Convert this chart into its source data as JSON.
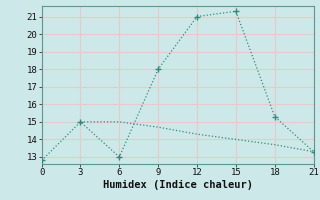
{
  "line1_x": [
    0,
    3,
    6,
    9,
    12,
    15,
    18,
    21
  ],
  "line1_y": [
    12.8,
    15.0,
    13.0,
    18.0,
    21.0,
    21.3,
    15.3,
    13.3
  ],
  "line2_x": [
    3,
    6,
    9,
    12,
    15,
    18,
    21
  ],
  "line2_y": [
    15.0,
    15.0,
    14.7,
    14.3,
    14.0,
    13.7,
    13.3
  ],
  "line_color": "#2e8b7a",
  "bg_color": "#cde8e8",
  "grid_color": "#e8c8c8",
  "xlabel": "Humidex (Indice chaleur)",
  "xlim": [
    0,
    21
  ],
  "ylim": [
    12.6,
    21.6
  ],
  "xticks": [
    0,
    3,
    6,
    9,
    12,
    15,
    18,
    21
  ],
  "yticks": [
    13,
    14,
    15,
    16,
    17,
    18,
    19,
    20,
    21
  ],
  "tick_fontsize": 6.5,
  "xlabel_fontsize": 7.5
}
